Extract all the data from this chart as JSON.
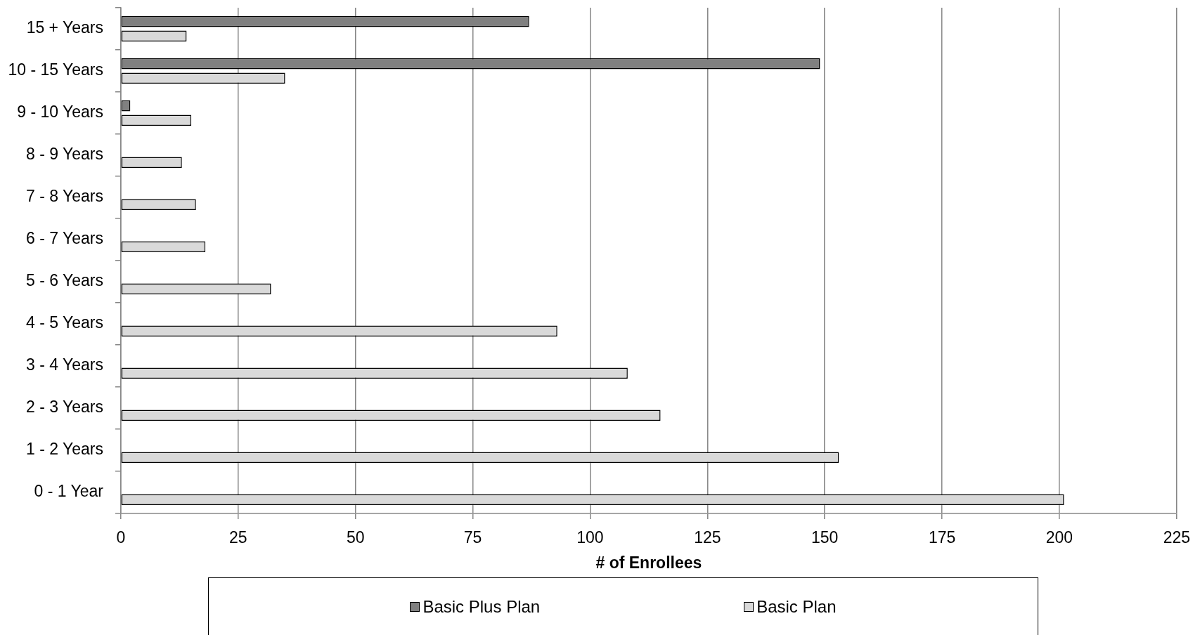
{
  "chart_data": {
    "type": "bar",
    "orientation": "horizontal",
    "categories": [
      "15 + Years",
      "10 - 15 Years",
      "9 - 10 Years",
      "8 - 9 Years",
      "7 - 8 Years",
      "6 - 7 Years",
      "5 - 6 Years",
      "4 - 5 Years",
      "3 - 4 Years",
      "2 - 3 Years",
      "1 - 2 Years",
      "0 - 1 Year"
    ],
    "series": [
      {
        "name": "Basic Plus Plan",
        "color": "#808080",
        "values": [
          87,
          149,
          2,
          null,
          null,
          null,
          null,
          null,
          null,
          null,
          null,
          null
        ]
      },
      {
        "name": "Basic Plan",
        "color": "#d9d9d9",
        "values": [
          14,
          35,
          15,
          13,
          16,
          18,
          32,
          93,
          108,
          115,
          153,
          201
        ]
      }
    ],
    "xlabel": "# of Enrollees",
    "xlim": [
      0,
      225
    ],
    "xticks": [
      0,
      25,
      50,
      75,
      100,
      125,
      150,
      175,
      200,
      225
    ],
    "grid": "x",
    "legend": "bottom"
  }
}
